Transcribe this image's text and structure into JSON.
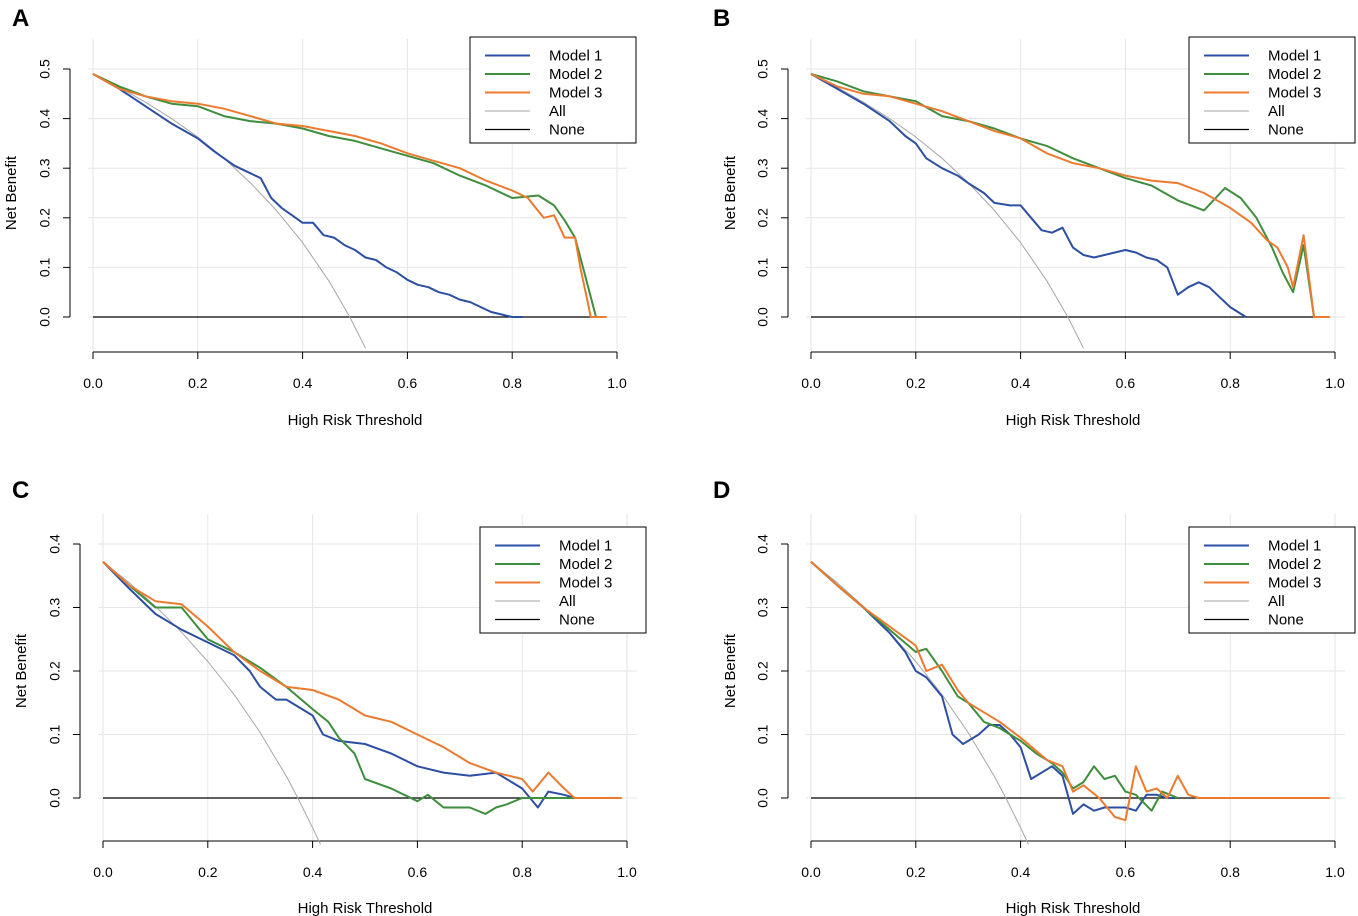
{
  "series_colors": {
    "Model 1": "#2D4FA3",
    "Model 2": "#3E8E3E",
    "Model 3": "#EC7A2F",
    "All": "#A6A6A6",
    "None": "#000000"
  },
  "chart_data": [
    {
      "type": "line",
      "panel": "A",
      "xlabel": "High Risk Threshold",
      "ylabel": "Net Benefit",
      "xlim": [
        0,
        1
      ],
      "ylim": [
        -0.07,
        0.55
      ],
      "x_ticks": [
        "0.0",
        "0.2",
        "0.4",
        "0.6",
        "0.8",
        "1.0"
      ],
      "y_ticks": [
        "0.0",
        "0.1",
        "0.2",
        "0.3",
        "0.4",
        "0.5"
      ],
      "legend": [
        "Model 1",
        "Model 2",
        "Model 3",
        "All",
        "None"
      ],
      "series": [
        {
          "name": "Model 1",
          "x": [
            0,
            0.05,
            0.1,
            0.15,
            0.2,
            0.23,
            0.25,
            0.27,
            0.3,
            0.32,
            0.34,
            0.36,
            0.38,
            0.4,
            0.42,
            0.44,
            0.46,
            0.48,
            0.5,
            0.52,
            0.54,
            0.56,
            0.58,
            0.6,
            0.62,
            0.64,
            0.66,
            0.68,
            0.7,
            0.72,
            0.74,
            0.76,
            0.78,
            0.8,
            0.82
          ],
          "y": [
            0.49,
            0.46,
            0.425,
            0.39,
            0.36,
            0.335,
            0.32,
            0.305,
            0.29,
            0.28,
            0.24,
            0.22,
            0.205,
            0.19,
            0.19,
            0.165,
            0.16,
            0.145,
            0.135,
            0.12,
            0.115,
            0.1,
            0.09,
            0.075,
            0.065,
            0.06,
            0.05,
            0.045,
            0.035,
            0.03,
            0.02,
            0.01,
            0.005,
            0,
            0
          ]
        },
        {
          "name": "Model 2",
          "x": [
            0,
            0.05,
            0.1,
            0.15,
            0.2,
            0.25,
            0.3,
            0.35,
            0.4,
            0.45,
            0.5,
            0.55,
            0.6,
            0.65,
            0.7,
            0.75,
            0.8,
            0.85,
            0.88,
            0.9,
            0.92,
            0.94,
            0.96
          ],
          "y": [
            0.49,
            0.465,
            0.445,
            0.43,
            0.425,
            0.405,
            0.395,
            0.39,
            0.38,
            0.365,
            0.355,
            0.34,
            0.325,
            0.31,
            0.285,
            0.265,
            0.24,
            0.245,
            0.225,
            0.195,
            0.16,
            0.08,
            0
          ]
        },
        {
          "name": "Model 3",
          "x": [
            0,
            0.05,
            0.1,
            0.15,
            0.2,
            0.25,
            0.3,
            0.35,
            0.4,
            0.45,
            0.5,
            0.55,
            0.6,
            0.65,
            0.7,
            0.75,
            0.8,
            0.83,
            0.86,
            0.88,
            0.9,
            0.92,
            0.93,
            0.94,
            0.95,
            0.98
          ],
          "y": [
            0.49,
            0.46,
            0.445,
            0.435,
            0.43,
            0.42,
            0.405,
            0.39,
            0.385,
            0.375,
            0.365,
            0.35,
            0.33,
            0.315,
            0.3,
            0.275,
            0.255,
            0.24,
            0.2,
            0.205,
            0.16,
            0.16,
            0.1,
            0.05,
            0,
            0
          ]
        },
        {
          "name": "All",
          "x": [
            0,
            0.05,
            0.1,
            0.15,
            0.2,
            0.25,
            0.3,
            0.35,
            0.4,
            0.45,
            0.49,
            0.52
          ],
          "y": [
            0.49,
            0.463,
            0.433,
            0.4,
            0.363,
            0.32,
            0.271,
            0.215,
            0.15,
            0.073,
            0.0,
            -0.063
          ]
        },
        {
          "name": "None",
          "x": [
            0,
            0.97
          ],
          "y": [
            0,
            0
          ]
        }
      ]
    },
    {
      "type": "line",
      "panel": "B",
      "xlabel": "High Risk Threshold",
      "ylabel": "Net Benefit",
      "xlim": [
        0,
        1
      ],
      "ylim": [
        -0.07,
        0.55
      ],
      "x_ticks": [
        "0.0",
        "0.2",
        "0.4",
        "0.6",
        "0.8",
        "1.0"
      ],
      "y_ticks": [
        "0.0",
        "0.1",
        "0.2",
        "0.3",
        "0.4",
        "0.5"
      ],
      "legend": [
        "Model 1",
        "Model 2",
        "Model 3",
        "All",
        "None"
      ],
      "series": [
        {
          "name": "Model 1",
          "x": [
            0,
            0.05,
            0.1,
            0.15,
            0.18,
            0.2,
            0.22,
            0.25,
            0.28,
            0.3,
            0.33,
            0.35,
            0.38,
            0.4,
            0.42,
            0.44,
            0.46,
            0.48,
            0.5,
            0.52,
            0.54,
            0.56,
            0.58,
            0.6,
            0.62,
            0.64,
            0.66,
            0.68,
            0.7,
            0.72,
            0.74,
            0.76,
            0.78,
            0.8,
            0.83
          ],
          "y": [
            0.49,
            0.46,
            0.43,
            0.395,
            0.365,
            0.35,
            0.32,
            0.3,
            0.285,
            0.27,
            0.25,
            0.23,
            0.225,
            0.225,
            0.2,
            0.175,
            0.17,
            0.18,
            0.14,
            0.125,
            0.12,
            0.125,
            0.13,
            0.135,
            0.13,
            0.12,
            0.115,
            0.1,
            0.045,
            0.06,
            0.07,
            0.06,
            0.04,
            0.02,
            0
          ]
        },
        {
          "name": "Model 2",
          "x": [
            0,
            0.05,
            0.1,
            0.15,
            0.2,
            0.25,
            0.3,
            0.35,
            0.4,
            0.45,
            0.5,
            0.55,
            0.6,
            0.65,
            0.7,
            0.75,
            0.79,
            0.82,
            0.85,
            0.88,
            0.9,
            0.92,
            0.94,
            0.96
          ],
          "y": [
            0.49,
            0.475,
            0.455,
            0.445,
            0.435,
            0.405,
            0.395,
            0.38,
            0.36,
            0.345,
            0.32,
            0.3,
            0.28,
            0.265,
            0.235,
            0.215,
            0.26,
            0.24,
            0.2,
            0.14,
            0.09,
            0.05,
            0.145,
            0
          ]
        },
        {
          "name": "Model 3",
          "x": [
            0,
            0.05,
            0.1,
            0.15,
            0.2,
            0.25,
            0.3,
            0.35,
            0.4,
            0.45,
            0.5,
            0.55,
            0.6,
            0.65,
            0.7,
            0.75,
            0.8,
            0.84,
            0.87,
            0.89,
            0.91,
            0.92,
            0.94,
            0.96,
            0.99
          ],
          "y": [
            0.49,
            0.465,
            0.45,
            0.445,
            0.43,
            0.415,
            0.395,
            0.375,
            0.36,
            0.33,
            0.31,
            0.3,
            0.285,
            0.275,
            0.27,
            0.25,
            0.22,
            0.19,
            0.155,
            0.14,
            0.1,
            0.06,
            0.165,
            0,
            0
          ]
        },
        {
          "name": "All",
          "x": [
            0,
            0.05,
            0.1,
            0.15,
            0.2,
            0.25,
            0.3,
            0.35,
            0.4,
            0.45,
            0.49,
            0.52
          ],
          "y": [
            0.49,
            0.463,
            0.433,
            0.4,
            0.363,
            0.32,
            0.271,
            0.215,
            0.15,
            0.073,
            0.0,
            -0.063
          ]
        },
        {
          "name": "None",
          "x": [
            0,
            0.97
          ],
          "y": [
            0,
            0
          ]
        }
      ]
    },
    {
      "type": "line",
      "panel": "C",
      "xlabel": "High Risk Threshold",
      "ylabel": "Net Benefit",
      "xlim": [
        0,
        1
      ],
      "ylim": [
        -0.07,
        0.42
      ],
      "x_ticks": [
        "0.0",
        "0.2",
        "0.4",
        "0.6",
        "0.8",
        "1.0"
      ],
      "y_ticks": [
        "0.0",
        "0.1",
        "0.2",
        "0.3",
        "0.4"
      ],
      "legend": [
        "Model 1",
        "Model 2",
        "Model 3",
        "All",
        "None"
      ],
      "series": [
        {
          "name": "Model 1",
          "x": [
            0,
            0.05,
            0.1,
            0.15,
            0.2,
            0.25,
            0.28,
            0.3,
            0.33,
            0.35,
            0.38,
            0.4,
            0.42,
            0.45,
            0.5,
            0.55,
            0.6,
            0.65,
            0.7,
            0.75,
            0.78,
            0.8,
            0.83,
            0.85,
            0.88,
            0.9
          ],
          "y": [
            0.372,
            0.33,
            0.29,
            0.265,
            0.245,
            0.225,
            0.2,
            0.175,
            0.155,
            0.155,
            0.14,
            0.13,
            0.1,
            0.09,
            0.085,
            0.07,
            0.05,
            0.04,
            0.035,
            0.04,
            0.025,
            0.015,
            -0.015,
            0.01,
            0.005,
            0
          ]
        },
        {
          "name": "Model 2",
          "x": [
            0,
            0.05,
            0.1,
            0.15,
            0.2,
            0.25,
            0.3,
            0.35,
            0.4,
            0.43,
            0.45,
            0.48,
            0.5,
            0.55,
            0.6,
            0.62,
            0.65,
            0.7,
            0.73,
            0.75,
            0.77,
            0.8,
            0.83,
            0.87,
            0.9
          ],
          "y": [
            0.372,
            0.335,
            0.3,
            0.3,
            0.25,
            0.23,
            0.205,
            0.175,
            0.14,
            0.12,
            0.095,
            0.07,
            0.03,
            0.015,
            -0.005,
            0.005,
            -0.015,
            -0.015,
            -0.025,
            -0.015,
            -0.01,
            0,
            0,
            0,
            0
          ]
        },
        {
          "name": "Model 3",
          "x": [
            0,
            0.05,
            0.1,
            0.15,
            0.2,
            0.25,
            0.3,
            0.35,
            0.4,
            0.45,
            0.5,
            0.55,
            0.6,
            0.65,
            0.7,
            0.75,
            0.8,
            0.82,
            0.85,
            0.88,
            0.9,
            0.95,
            0.99
          ],
          "y": [
            0.372,
            0.335,
            0.31,
            0.305,
            0.27,
            0.23,
            0.2,
            0.175,
            0.17,
            0.155,
            0.13,
            0.12,
            0.1,
            0.08,
            0.055,
            0.04,
            0.03,
            0.01,
            0.04,
            0.015,
            0,
            0,
            0
          ]
        },
        {
          "name": "All",
          "x": [
            0,
            0.05,
            0.1,
            0.15,
            0.2,
            0.25,
            0.3,
            0.35,
            0.37,
            0.4,
            0.415
          ],
          "y": [
            0.372,
            0.339,
            0.302,
            0.261,
            0.215,
            0.163,
            0.103,
            0.034,
            0.003,
            -0.047,
            -0.073
          ]
        },
        {
          "name": "None",
          "x": [
            0,
            0.98
          ],
          "y": [
            0,
            0
          ]
        }
      ]
    },
    {
      "type": "line",
      "panel": "D",
      "xlabel": "High Risk Threshold",
      "ylabel": "Net Benefit",
      "xlim": [
        0,
        1
      ],
      "ylim": [
        -0.07,
        0.42
      ],
      "x_ticks": [
        "0.0",
        "0.2",
        "0.4",
        "0.6",
        "0.8",
        "1.0"
      ],
      "y_ticks": [
        "0.0",
        "0.1",
        "0.2",
        "0.3",
        "0.4"
      ],
      "legend": [
        "Model 1",
        "Model 2",
        "Model 3",
        "All",
        "None"
      ],
      "series": [
        {
          "name": "Model 1",
          "x": [
            0,
            0.05,
            0.1,
            0.15,
            0.18,
            0.2,
            0.22,
            0.25,
            0.27,
            0.29,
            0.3,
            0.32,
            0.34,
            0.36,
            0.38,
            0.4,
            0.42,
            0.44,
            0.46,
            0.48,
            0.5,
            0.52,
            0.54,
            0.56,
            0.58,
            0.6,
            0.62,
            0.64,
            0.66,
            0.68,
            0.7
          ],
          "y": [
            0.372,
            0.335,
            0.3,
            0.26,
            0.23,
            0.2,
            0.19,
            0.16,
            0.1,
            0.085,
            0.09,
            0.1,
            0.115,
            0.115,
            0.1,
            0.08,
            0.03,
            0.04,
            0.05,
            0.035,
            -0.025,
            -0.01,
            -0.02,
            -0.015,
            -0.015,
            -0.015,
            -0.02,
            0.005,
            0.005,
            0,
            0
          ]
        },
        {
          "name": "Model 2",
          "x": [
            0,
            0.05,
            0.1,
            0.15,
            0.2,
            0.22,
            0.25,
            0.28,
            0.3,
            0.33,
            0.36,
            0.4,
            0.43,
            0.46,
            0.48,
            0.5,
            0.52,
            0.54,
            0.56,
            0.58,
            0.6,
            0.62,
            0.65,
            0.67,
            0.7
          ],
          "y": [
            0.372,
            0.335,
            0.3,
            0.265,
            0.23,
            0.235,
            0.2,
            0.16,
            0.15,
            0.12,
            0.11,
            0.09,
            0.07,
            0.055,
            0.04,
            0.015,
            0.025,
            0.05,
            0.03,
            0.035,
            0.01,
            0.005,
            -0.02,
            0.01,
            0
          ]
        },
        {
          "name": "Model 3",
          "x": [
            0,
            0.05,
            0.1,
            0.15,
            0.2,
            0.22,
            0.25,
            0.28,
            0.3,
            0.33,
            0.36,
            0.4,
            0.45,
            0.48,
            0.5,
            0.52,
            0.55,
            0.58,
            0.6,
            0.62,
            0.64,
            0.66,
            0.68,
            0.7,
            0.72,
            0.74,
            0.76,
            0.8,
            0.85,
            0.99
          ],
          "y": [
            0.372,
            0.335,
            0.3,
            0.27,
            0.24,
            0.2,
            0.21,
            0.17,
            0.15,
            0.135,
            0.12,
            0.095,
            0.06,
            0.05,
            0.01,
            0.02,
            0,
            -0.03,
            -0.035,
            0.05,
            0.01,
            0.015,
            0,
            0.035,
            0.005,
            0,
            0,
            0,
            0,
            0
          ]
        },
        {
          "name": "All",
          "x": [
            0,
            0.05,
            0.1,
            0.15,
            0.2,
            0.25,
            0.3,
            0.35,
            0.37,
            0.4,
            0.415
          ],
          "y": [
            0.372,
            0.339,
            0.302,
            0.261,
            0.215,
            0.163,
            0.103,
            0.034,
            0.003,
            -0.047,
            -0.073
          ]
        },
        {
          "name": "None",
          "x": [
            0,
            0.98
          ],
          "y": [
            0,
            0
          ]
        }
      ]
    }
  ]
}
